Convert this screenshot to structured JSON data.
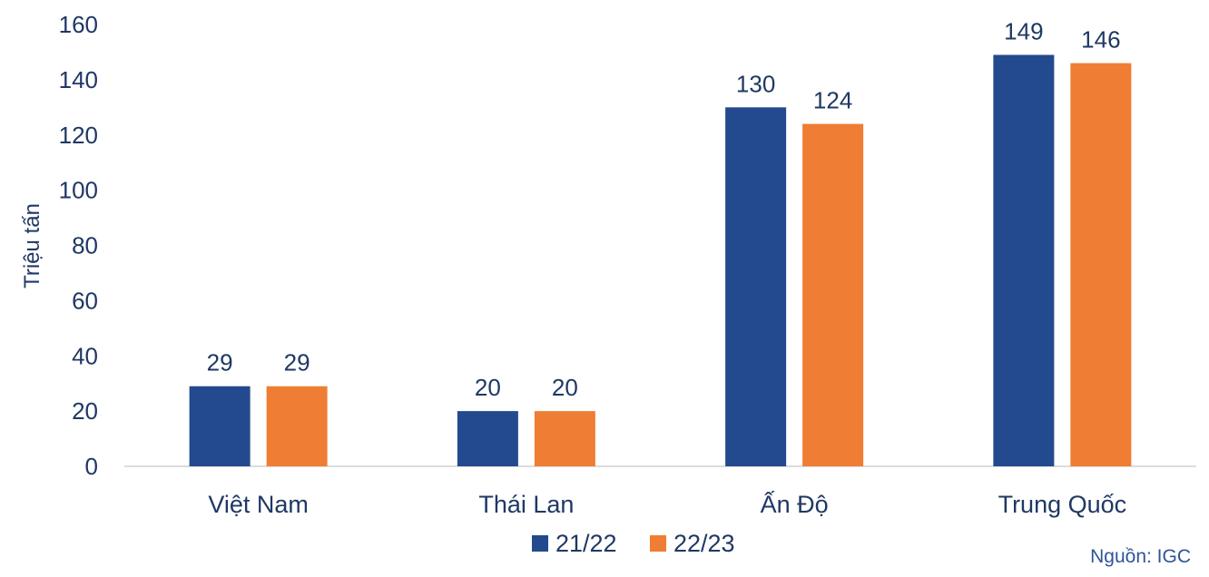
{
  "chart_data": {
    "type": "bar",
    "title": "",
    "xlabel": "",
    "ylabel": "Triệu tấn",
    "ylim": [
      0,
      160
    ],
    "yticks": [
      0,
      20,
      40,
      60,
      80,
      100,
      120,
      140,
      160
    ],
    "categories": [
      "Việt Nam",
      "Thái Lan",
      "Ấn Độ",
      "Trung Quốc"
    ],
    "series": [
      {
        "name": "21/22",
        "color": "#234a8e",
        "values": [
          29,
          20,
          130,
          149
        ]
      },
      {
        "name": "22/23",
        "color": "#ef7d33",
        "values": [
          29,
          20,
          124,
          146
        ]
      }
    ],
    "legend_position": "bottom",
    "grid": false,
    "data_labels": true
  },
  "source": "Nguồn: IGC"
}
